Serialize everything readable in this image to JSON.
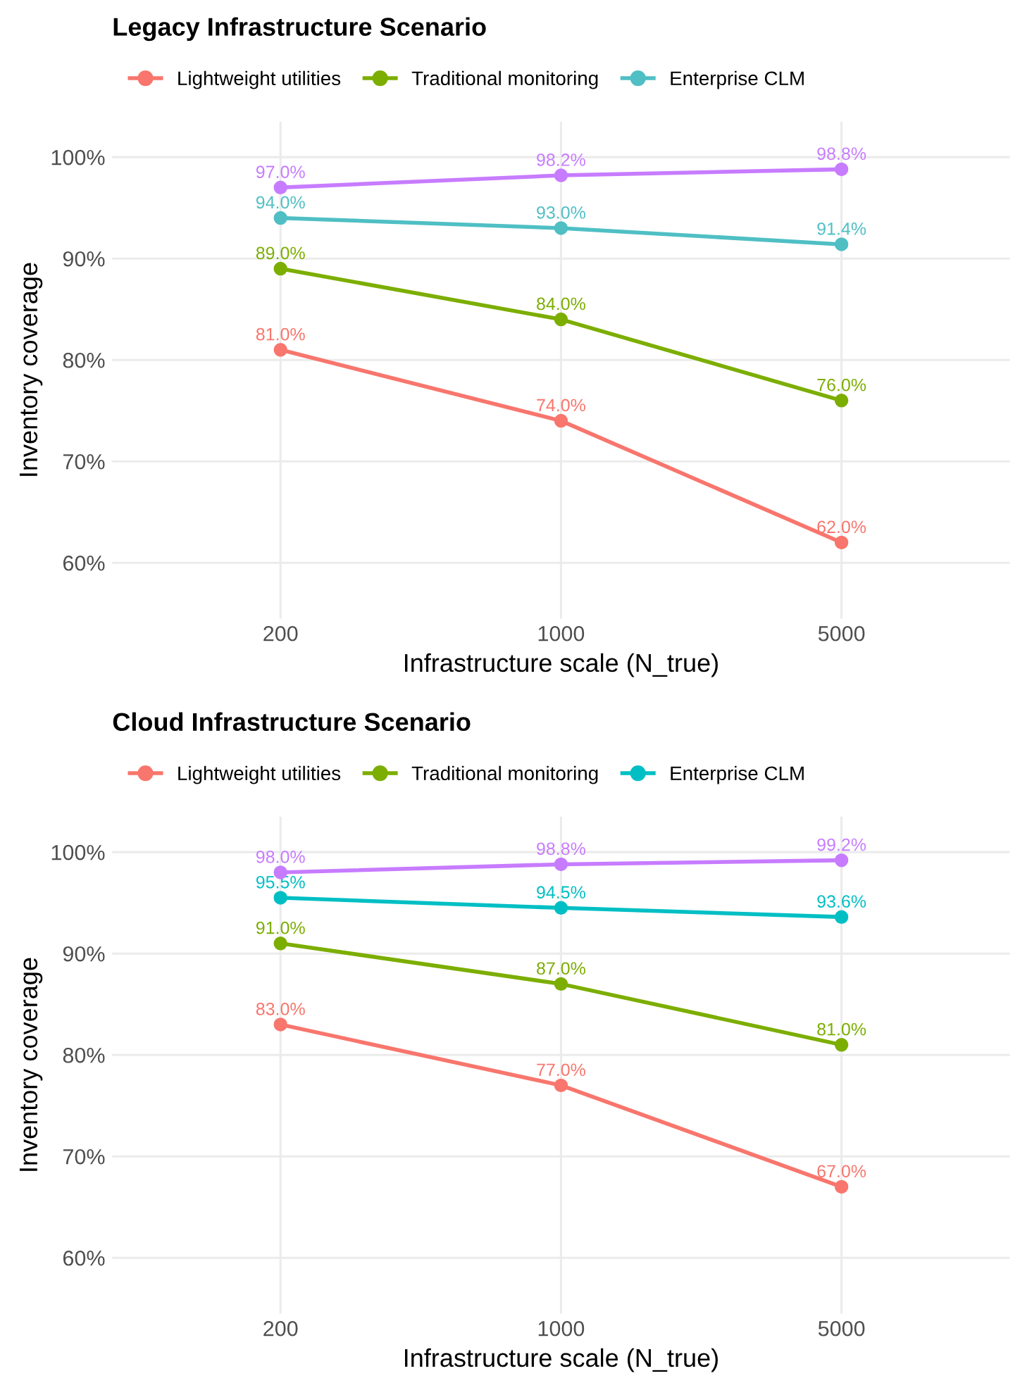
{
  "chart_data": [
    {
      "type": "line",
      "title": "Legacy Infrastructure Scenario",
      "xlabel": "Infrastructure scale (N_true)",
      "ylabel": "Inventory coverage",
      "categories": [
        "200",
        "1000",
        "5000"
      ],
      "ylim": [
        54.5,
        103.5
      ],
      "yticks": [
        {
          "value": 60,
          "label": "60%"
        },
        {
          "value": 70,
          "label": "70%"
        },
        {
          "value": 80,
          "label": "80%"
        },
        {
          "value": 90,
          "label": "90%"
        },
        {
          "value": 100,
          "label": "100%"
        }
      ],
      "grid": true,
      "legend": "top",
      "marker": "circle",
      "line_style": "solid",
      "series": [
        {
          "name": "Lightweight utilities",
          "color": "#f8766d",
          "values": [
            81.0,
            74.0,
            62.0
          ],
          "value_labels": [
            "81.0%",
            "74.0%",
            "62.0%"
          ]
        },
        {
          "name": "Traditional monitoring",
          "color": "#7cae00",
          "values": [
            89.0,
            84.0,
            76.0
          ],
          "value_labels": [
            "89.0%",
            "84.0%",
            "76.0%"
          ]
        },
        {
          "name": "Enterprise CLM",
          "color": "#4fbfc4",
          "values": [
            94.0,
            93.0,
            91.4
          ],
          "value_labels": [
            "94.0%",
            "93.0%",
            "91.4%"
          ]
        },
        {
          "color": "#c77cff",
          "values": [
            97.0,
            98.2,
            98.8
          ],
          "value_labels": [
            "97.0%",
            "98.2%",
            "98.8%"
          ]
        }
      ]
    },
    {
      "type": "line",
      "title": "Cloud Infrastructure Scenario",
      "xlabel": "Infrastructure scale (N_true)",
      "ylabel": "Inventory coverage",
      "categories": [
        "200",
        "1000",
        "5000"
      ],
      "ylim": [
        54.5,
        103.5
      ],
      "yticks": [
        {
          "value": 60,
          "label": "60%"
        },
        {
          "value": 70,
          "label": "70%"
        },
        {
          "value": 80,
          "label": "80%"
        },
        {
          "value": 90,
          "label": "90%"
        },
        {
          "value": 100,
          "label": "100%"
        }
      ],
      "grid": true,
      "legend": "top",
      "marker": "circle",
      "line_style": "solid",
      "series": [
        {
          "name": "Lightweight utilities",
          "color": "#f8766d",
          "values": [
            83.0,
            77.0,
            67.0
          ],
          "value_labels": [
            "83.0%",
            "77.0%",
            "67.0%"
          ]
        },
        {
          "name": "Traditional monitoring",
          "color": "#7cae00",
          "values": [
            91.0,
            87.0,
            81.0
          ],
          "value_labels": [
            "91.0%",
            "87.0%",
            "81.0%"
          ]
        },
        {
          "name": "Enterprise CLM",
          "color": "#00bfc4",
          "values": [
            95.5,
            94.5,
            93.6
          ],
          "value_labels": [
            "95.5%",
            "94.5%",
            "93.6%"
          ]
        },
        {
          "color": "#c77cff",
          "values": [
            98.0,
            98.8,
            99.2
          ],
          "value_labels": [
            "98.0%",
            "98.8%",
            "99.2%"
          ]
        }
      ]
    }
  ]
}
